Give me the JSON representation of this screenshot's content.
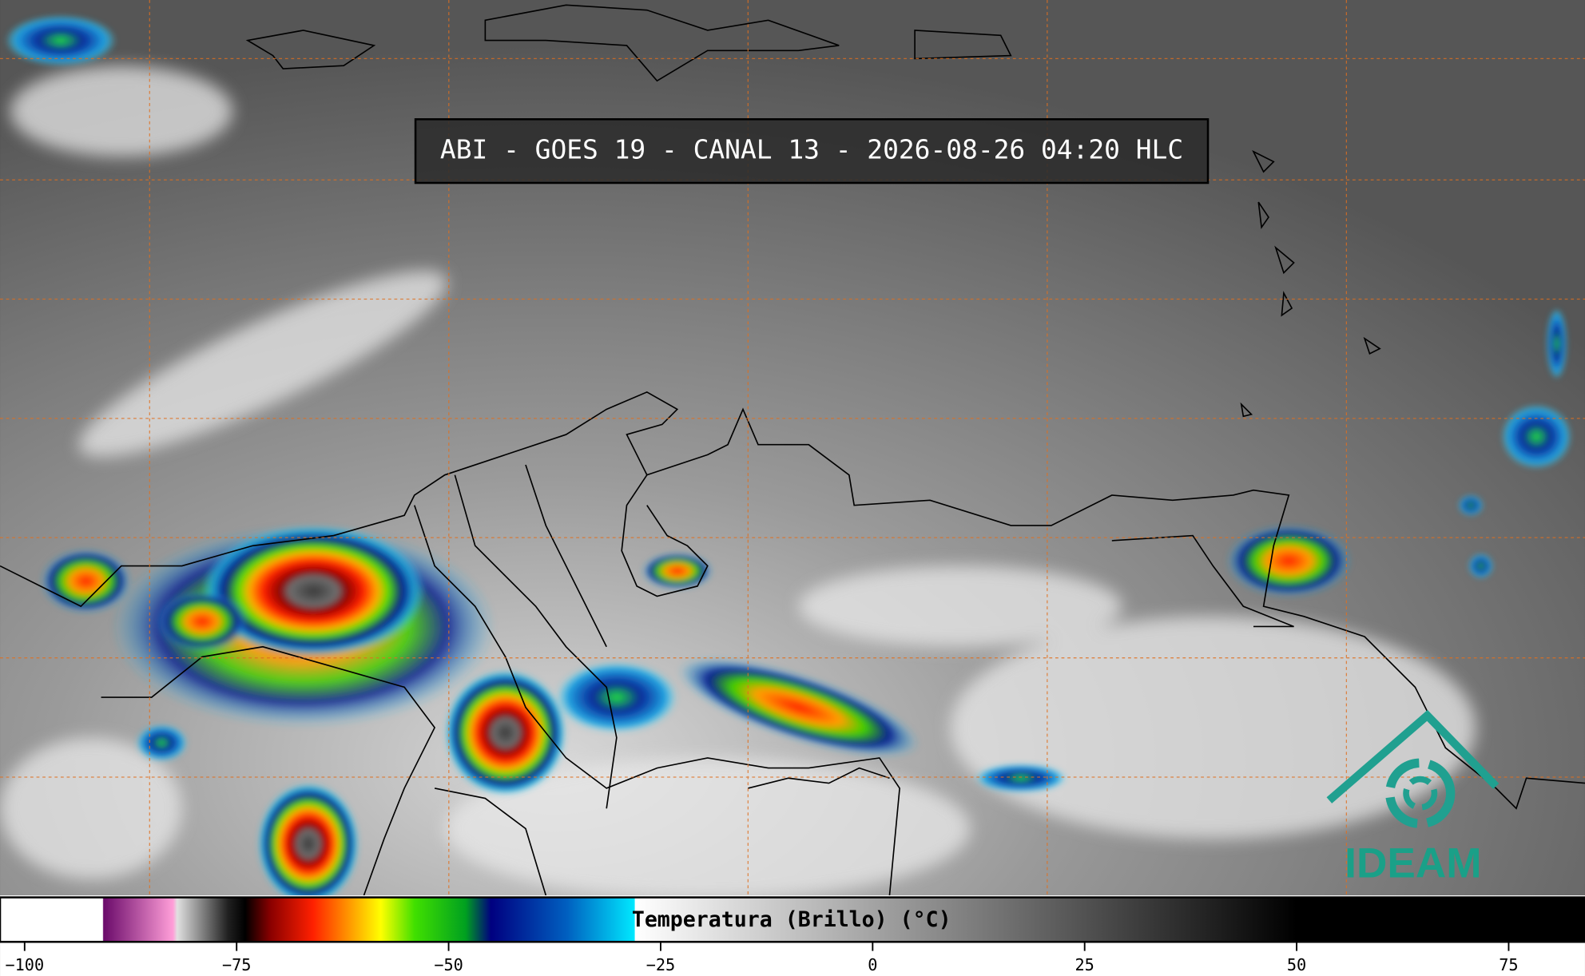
{
  "header": {
    "title": "ABI - GOES 19 - CANAL 13 - 2026-08-26 04:20 HLC"
  },
  "logo": {
    "text": "IDEAM"
  },
  "chart_data": {
    "type": "colorbar",
    "label": "Temperatura (Brillo) (°C)",
    "xlim": [
      -102.9,
      84
    ],
    "xticks": [
      {
        "value": -100,
        "label": "−100"
      },
      {
        "value": -75,
        "label": "−75"
      },
      {
        "value": -50,
        "label": "−50"
      },
      {
        "value": -25,
        "label": "−25"
      },
      0,
      25,
      50,
      75
    ],
    "colormap": [
      {
        "value": -102.9,
        "color": "#ffffff"
      },
      {
        "value": -90.8,
        "color": "#ffffff"
      },
      {
        "value": -90.7,
        "color": "#6a0a6a"
      },
      {
        "value": -82.5,
        "color": "#ff9ed8"
      },
      {
        "value": -82,
        "color": "#e0e0e0"
      },
      {
        "value": -76,
        "color": "#202020"
      },
      {
        "value": -74,
        "color": "#000000"
      },
      {
        "value": -71,
        "color": "#8a0000"
      },
      {
        "value": -66,
        "color": "#ff2000"
      },
      {
        "value": -62,
        "color": "#ff9000"
      },
      {
        "value": -58,
        "color": "#ffff00"
      },
      {
        "value": -54,
        "color": "#40e000"
      },
      {
        "value": -48,
        "color": "#00a020"
      },
      {
        "value": -45,
        "color": "#000080"
      },
      {
        "value": -36,
        "color": "#0060c0"
      },
      {
        "value": -28.1,
        "color": "#00e8ff"
      },
      {
        "value": -28,
        "color": "#ffffff"
      },
      {
        "value": 50,
        "color": "#000000"
      },
      {
        "value": 84,
        "color": "#000000"
      }
    ]
  }
}
